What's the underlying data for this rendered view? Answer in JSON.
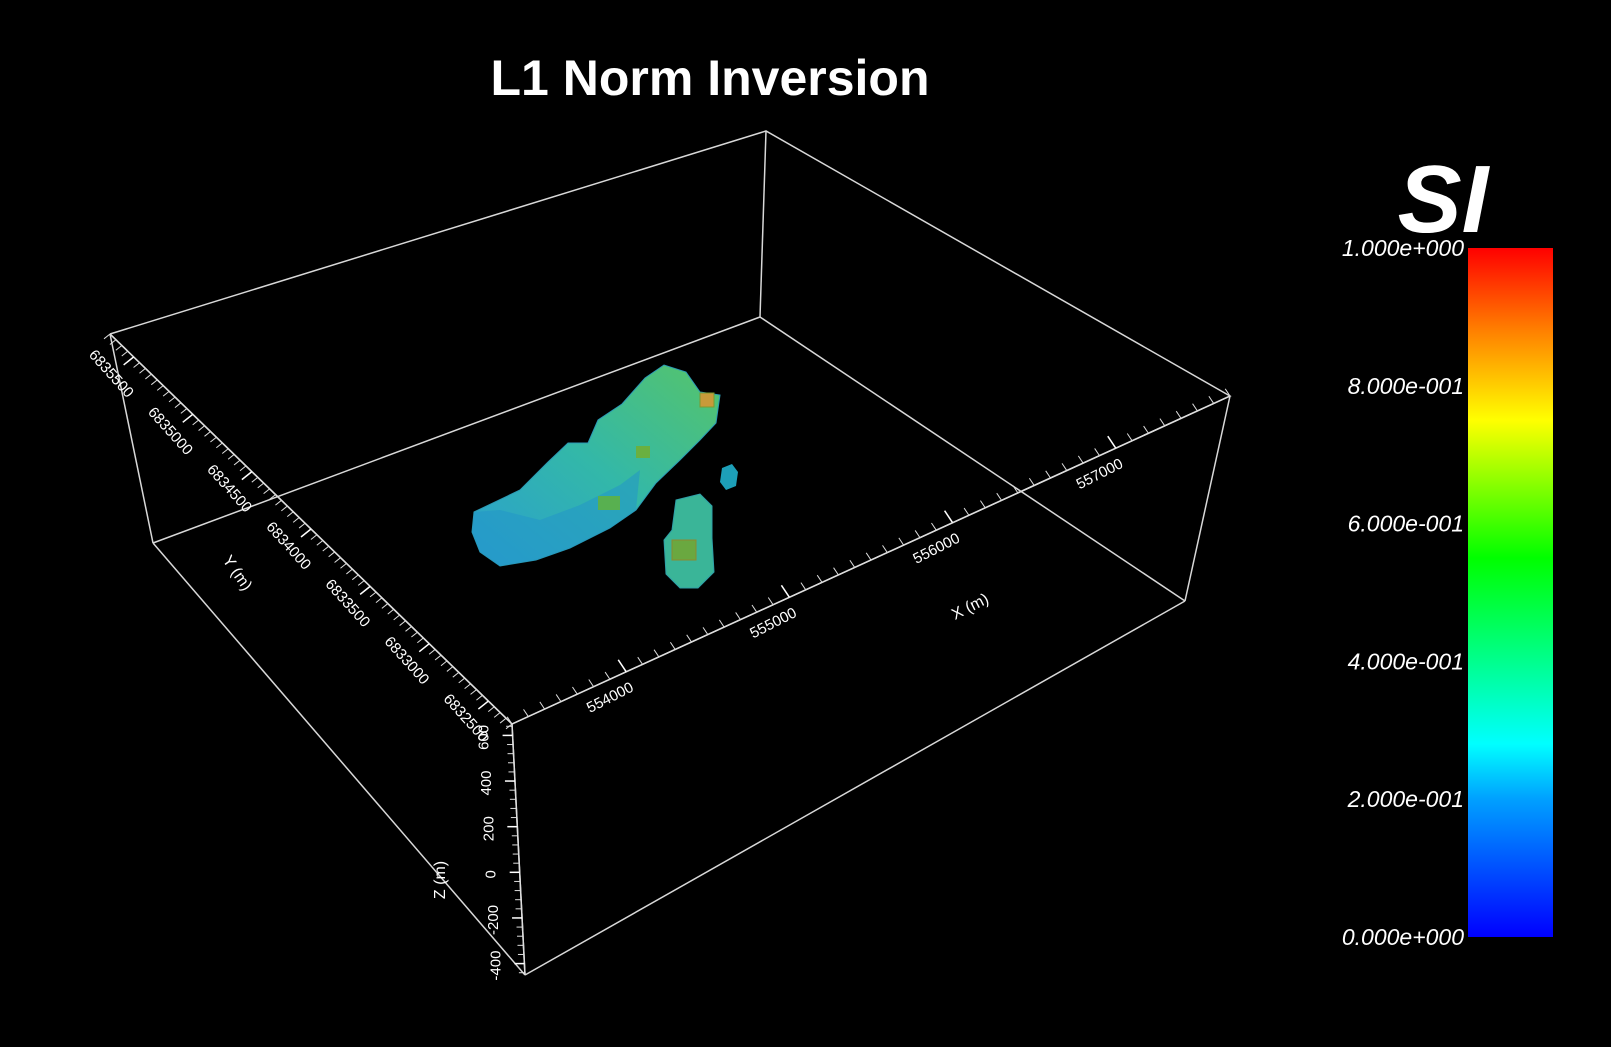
{
  "chart_data": {
    "type": "3d-voxel",
    "title": "L1 Norm Inversion",
    "x_axis": {
      "label": "X (m)",
      "ticks": [
        554000,
        555000,
        556000,
        557000
      ],
      "range": [
        553300,
        557700
      ]
    },
    "y_axis": {
      "label": "Y (m)",
      "ticks": [
        6832500,
        6833000,
        6833500,
        6834000,
        6834500,
        6835000,
        6835500
      ],
      "range": [
        6832300,
        6835700
      ]
    },
    "z_axis": {
      "label": "Z (m)",
      "ticks": [
        -400,
        -200,
        0,
        200,
        400,
        600
      ],
      "range": [
        -450,
        650
      ]
    },
    "colorbar": {
      "unit": "SI",
      "min": 0,
      "max": 1,
      "ticks": [
        "0.000e+000",
        "2.000e-001",
        "4.000e-001",
        "6.000e-001",
        "8.000e-001",
        "1.000e+000"
      ],
      "colors": [
        "#0000ff",
        "#00c8ff",
        "#00ffff",
        "#00ff00",
        "#ffff00",
        "#ff8000",
        "#ff0000"
      ]
    },
    "bodies": [
      {
        "name": "main-anomaly",
        "color": "#2fb0b0"
      },
      {
        "name": "southern-anomaly",
        "color": "#3ab598"
      },
      {
        "name": "small-anomaly",
        "color": "#1d9fb8"
      }
    ],
    "grid": false,
    "legend": "right"
  }
}
